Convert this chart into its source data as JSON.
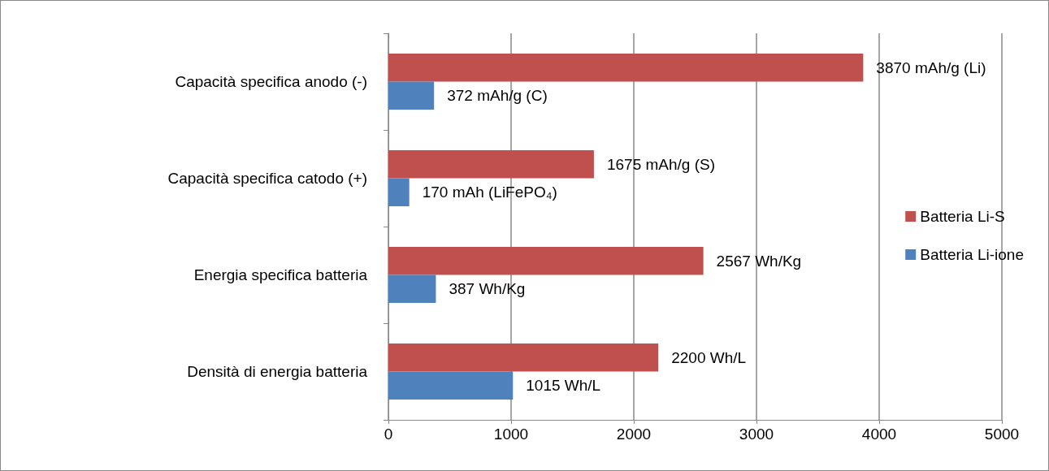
{
  "chart_data": {
    "type": "bar",
    "orientation": "horizontal",
    "categories": [
      "Capacità specifica anodo (-)",
      "Capacità specifica catodo (+)",
      "Energia specifica batteria",
      "Densità di energia batteria"
    ],
    "series": [
      {
        "name": "Batteria Li-S",
        "color": "#c0504d",
        "values": [
          3870,
          1675,
          2567,
          2200
        ],
        "value_labels": [
          "3870 mAh/g (Li)",
          "1675 mAh/g (S)",
          "2567 Wh/Kg",
          "2200 Wh/L"
        ]
      },
      {
        "name": "Batteria Li-ione",
        "color": "#4f81bd",
        "values": [
          372,
          170,
          387,
          1015
        ],
        "value_labels": [
          "372 mAh/g (C)",
          "170 mAh (LiFePO₄)",
          "387 Wh/Kg",
          "1015 Wh/L"
        ]
      }
    ],
    "xlim": [
      0,
      5000
    ],
    "xticks": [
      0,
      1000,
      2000,
      3000,
      4000,
      5000
    ],
    "grid": "x",
    "legend": "right"
  }
}
